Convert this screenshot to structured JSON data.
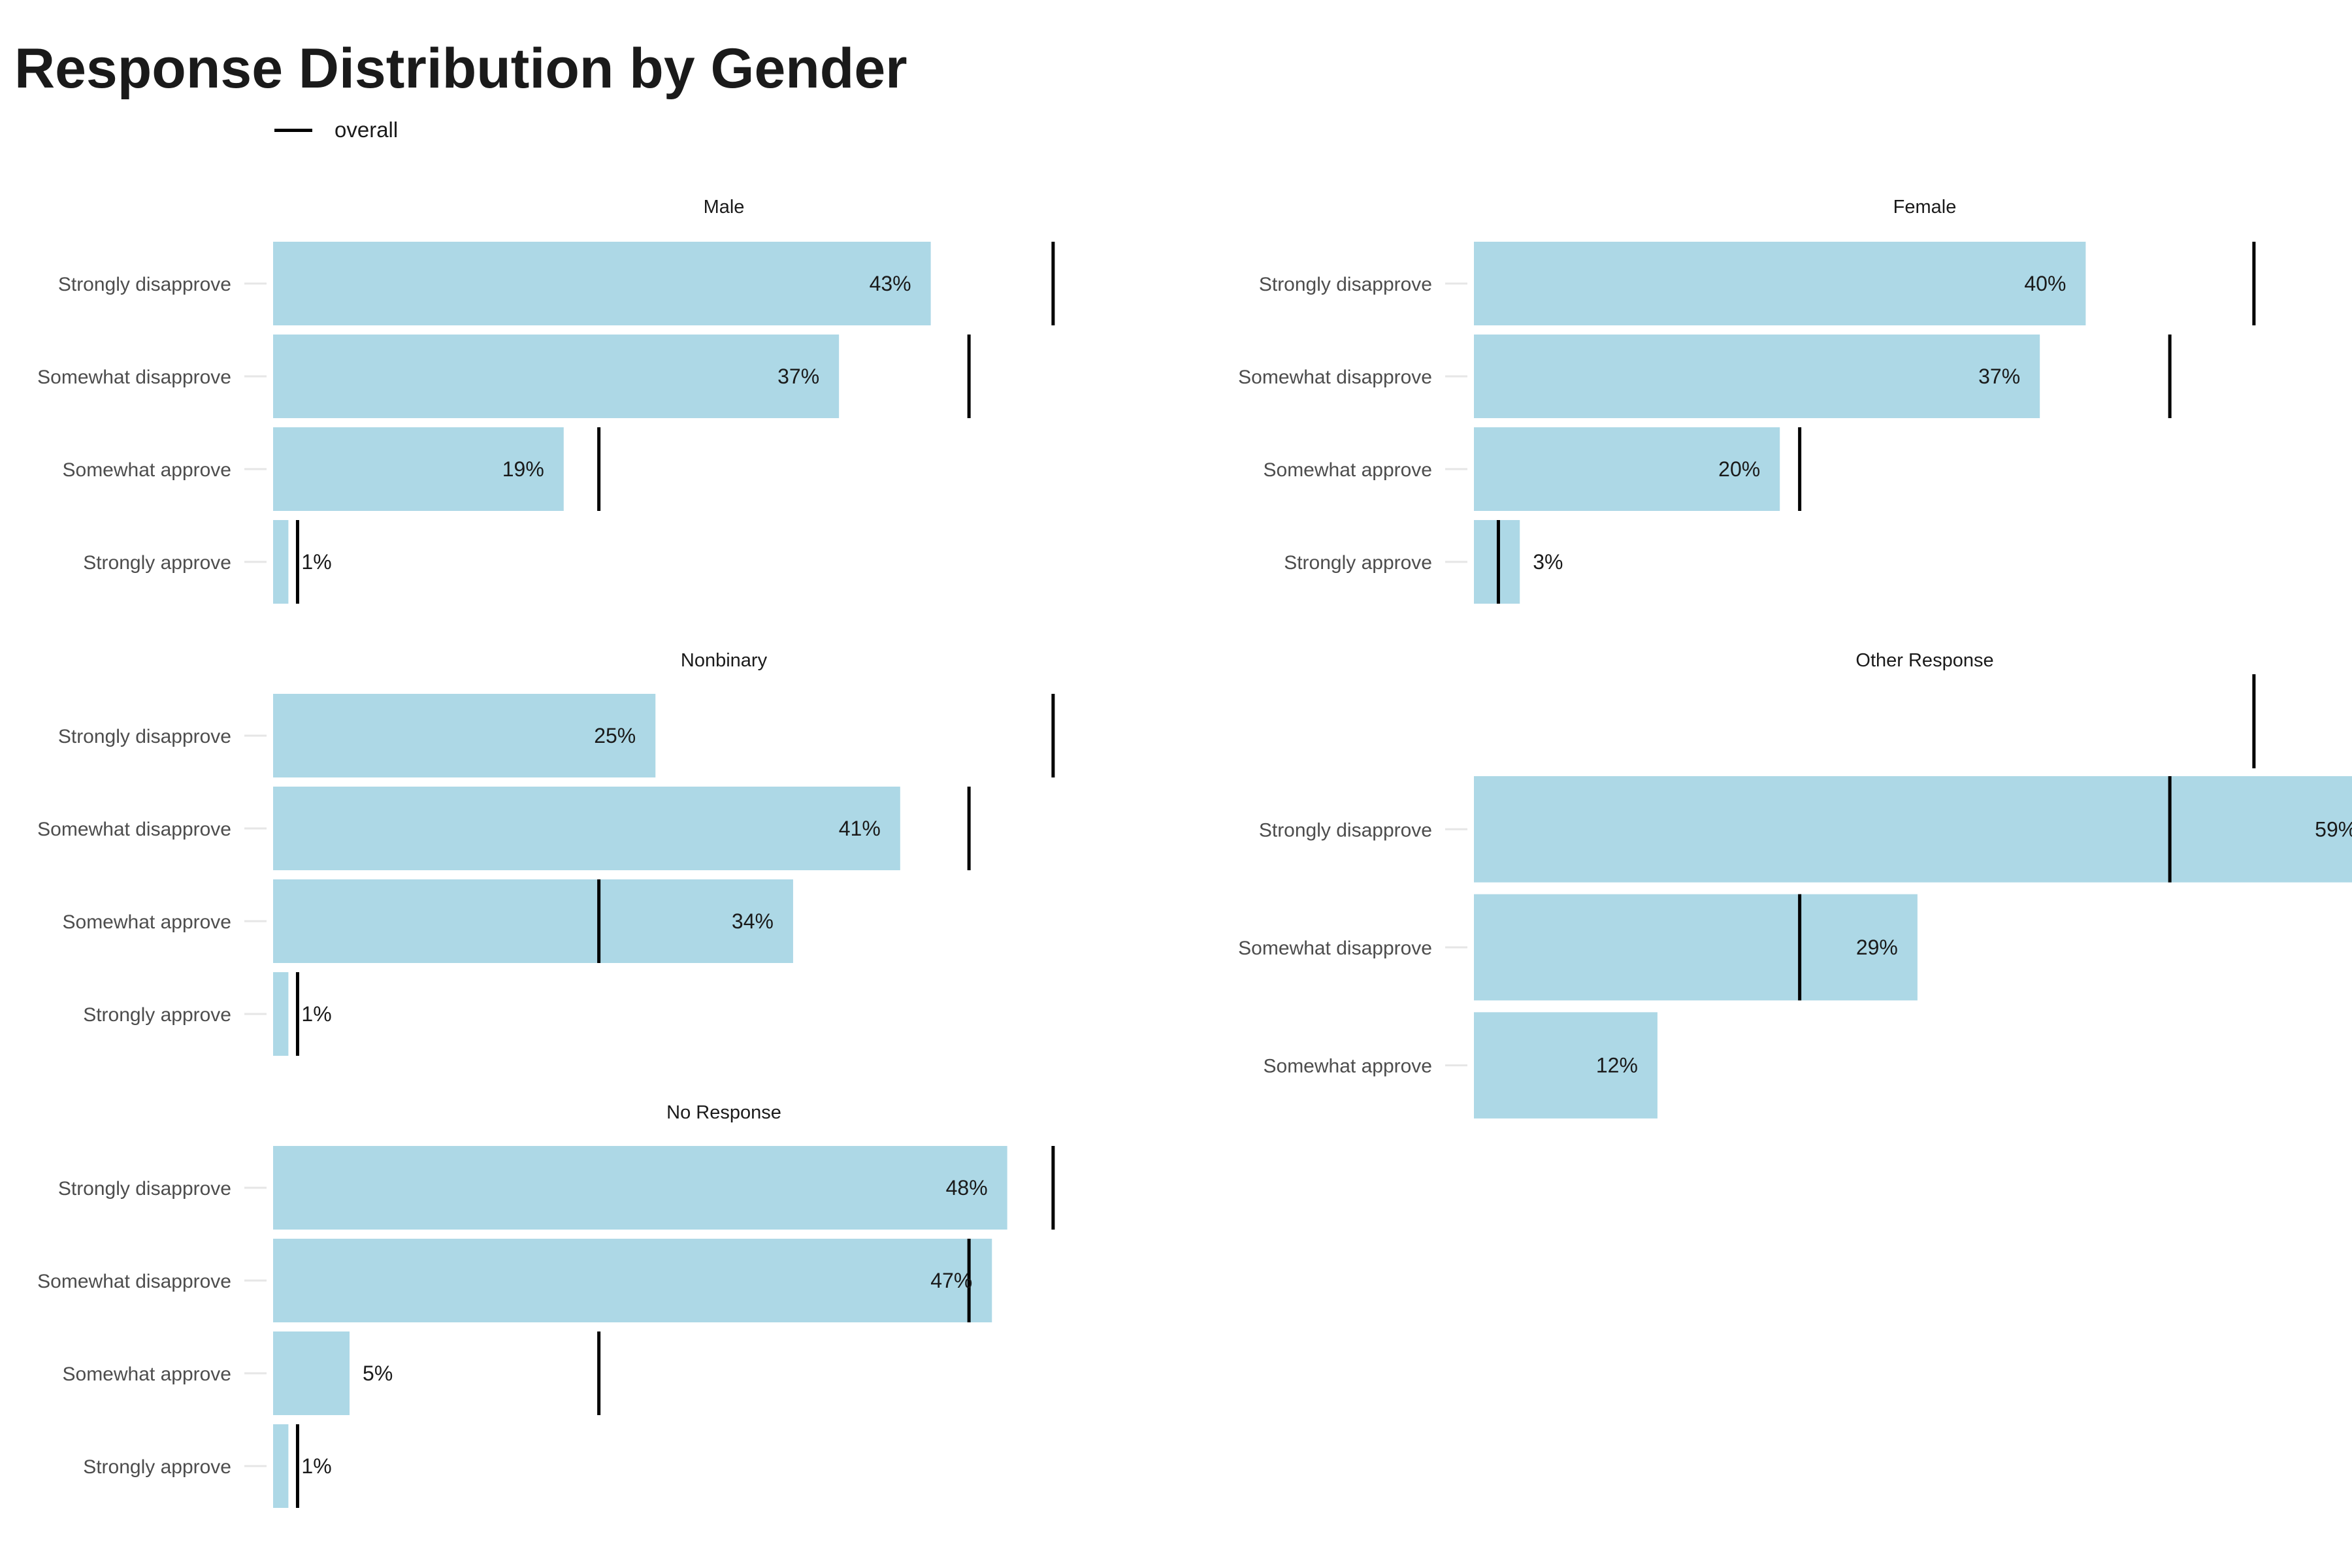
{
  "chart_data": {
    "type": "bar",
    "orientation": "horizontal",
    "title": "Response Distribution by Gender",
    "legend": {
      "entries": [
        "overall"
      ],
      "placement": "top-left"
    },
    "grid": false,
    "bar_color": "#add8e6",
    "marker_color": "#000000",
    "overall_values": {
      "Strongly disapprove": 0.51,
      "Somewhat disapprove": 0.455,
      "Somewhat approve": 0.213,
      "Strongly approve": 0.016
    },
    "facets": [
      {
        "name": "Male",
        "categories": [
          "Strongly disapprove",
          "Somewhat disapprove",
          "Somewhat approve",
          "Strongly approve"
        ],
        "values": [
          0.43,
          0.37,
          0.19,
          0.01
        ],
        "labels": [
          "43%",
          "37%",
          "19%",
          "1%"
        ]
      },
      {
        "name": "Female",
        "categories": [
          "Strongly disapprove",
          "Somewhat disapprove",
          "Somewhat approve",
          "Strongly approve"
        ],
        "values": [
          0.4,
          0.37,
          0.2,
          0.03
        ],
        "labels": [
          "40%",
          "37%",
          "20%",
          "3%"
        ]
      },
      {
        "name": "Nonbinary",
        "categories": [
          "Strongly disapprove",
          "Somewhat disapprove",
          "Somewhat approve",
          "Strongly approve"
        ],
        "values": [
          0.25,
          0.41,
          0.34,
          0.01
        ],
        "labels": [
          "25%",
          "41%",
          "34%",
          "1%"
        ]
      },
      {
        "name": "Other Response",
        "categories": [
          "Strongly disapprove",
          "Somewhat disapprove",
          "Somewhat approve"
        ],
        "values": [
          0.59,
          0.29,
          0.12
        ],
        "labels": [
          "59%",
          "29%",
          "12%"
        ],
        "extra_overall_marker": "Strongly disapprove"
      },
      {
        "name": "No Response",
        "categories": [
          "Strongly disapprove",
          "Somewhat disapprove",
          "Somewhat approve",
          "Strongly approve"
        ],
        "values": [
          0.48,
          0.47,
          0.05,
          0.01
        ],
        "labels": [
          "48%",
          "47%",
          "5%",
          "1%"
        ]
      }
    ]
  }
}
